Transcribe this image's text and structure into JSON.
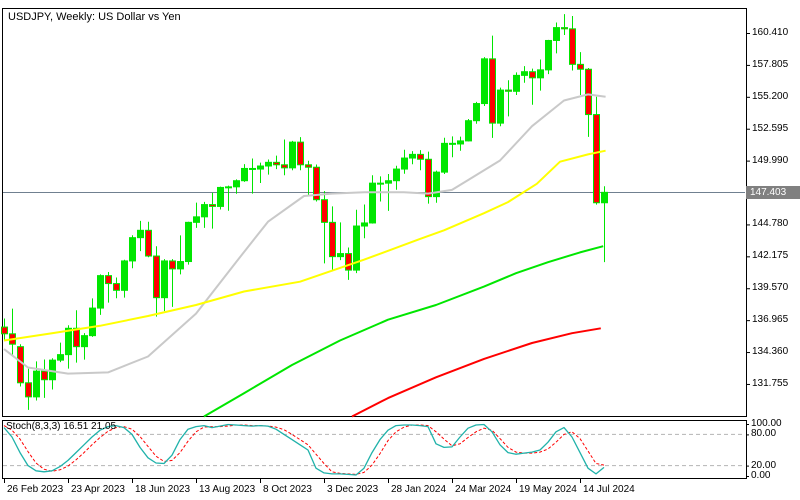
{
  "window": {
    "title": "USDJPY, Weekly:  US Dollar vs Yen"
  },
  "colors": {
    "background": "#ffffff",
    "border": "#000000",
    "text": "#000000",
    "bull": "#00e600",
    "bear": "#ff0000",
    "wick": "#00e600",
    "ma_gray": "#c9c9c9",
    "ma_yellow": "#ffff00",
    "ma_green": "#00e600",
    "ma_red": "#ff0000",
    "price_line": "#708090",
    "badge_bg": "#808080",
    "badge_text": "#ffffff",
    "stoch_main": "#20b2aa",
    "stoch_signal": "#ff0000",
    "stoch_level": "#b4b4b4"
  },
  "price_axis": {
    "current": "147.403",
    "labels": [
      "160.410",
      "157.805",
      "155.200",
      "152.595",
      "149.990",
      "144.780",
      "142.175",
      "139.570",
      "136.965",
      "134.360",
      "131.755"
    ]
  },
  "time_axis": [
    {
      "label": "26 Feb 2023",
      "i": 0
    },
    {
      "label": "23 Apr 2023",
      "i": 8
    },
    {
      "label": "18 Jun 2023",
      "i": 16
    },
    {
      "label": "13 Aug 2023",
      "i": 24
    },
    {
      "label": "8 Oct 2023",
      "i": 32
    },
    {
      "label": "3 Dec 2023",
      "i": 40
    },
    {
      "label": "28 Jan 2024",
      "i": 48
    },
    {
      "label": "24 Mar 2024",
      "i": 56
    },
    {
      "label": "19 May 2024",
      "i": 64
    },
    {
      "label": "14 Jul 2024",
      "i": 72
    }
  ],
  "stoch_axis": {
    "label": "Stoch(8,3,3) 16.51 21.05",
    "levels": [
      {
        "label": "100.00",
        "value": 100
      },
      {
        "label": "80.00",
        "value": 80
      },
      {
        "label": "20.00",
        "value": 20
      },
      {
        "label": "0.00",
        "value": 0
      }
    ],
    "dashed_levels": [
      80,
      20
    ]
  },
  "chart_data": {
    "type": "candlestick",
    "symbol": "USDJPY",
    "timeframe": "Weekly",
    "current_price": 147.403,
    "visible_range": {
      "high": 161.95,
      "low": 129.0
    },
    "candles": [
      [
        136.4,
        137.1,
        135.25,
        135.85
      ],
      [
        135.85,
        137.91,
        134.1,
        135.0
      ],
      [
        134.8,
        135.0,
        131.55,
        131.85
      ],
      [
        131.85,
        133.0,
        129.64,
        130.7
      ],
      [
        130.7,
        133.6,
        130.4,
        132.8
      ],
      [
        132.8,
        133.75,
        130.62,
        132.1
      ],
      [
        132.1,
        133.85,
        131.3,
        133.7
      ],
      [
        133.7,
        135.13,
        133.54,
        134.15
      ],
      [
        134.15,
        136.55,
        133.01,
        136.3
      ],
      [
        136.3,
        137.77,
        133.5,
        134.8
      ],
      [
        134.8,
        135.9,
        133.74,
        135.7
      ],
      [
        135.7,
        138.74,
        135.6,
        137.95
      ],
      [
        137.95,
        140.7,
        137.4,
        140.6
      ],
      [
        140.6,
        140.9,
        138.4,
        139.95
      ],
      [
        139.95,
        140.45,
        138.75,
        139.4
      ],
      [
        139.4,
        141.9,
        138.8,
        141.8
      ],
      [
        141.8,
        143.9,
        141.2,
        143.7
      ],
      [
        143.7,
        145.07,
        142.6,
        144.3
      ],
      [
        144.3,
        145.0,
        142.1,
        142.2
      ],
      [
        142.2,
        143.0,
        137.25,
        138.8
      ],
      [
        138.8,
        141.95,
        137.7,
        141.8
      ],
      [
        141.8,
        141.95,
        138.05,
        141.15
      ],
      [
        141.15,
        143.89,
        140.7,
        141.75
      ],
      [
        141.75,
        145.0,
        141.5,
        144.95
      ],
      [
        144.95,
        146.56,
        144.5,
        145.4
      ],
      [
        145.4,
        146.62,
        144.5,
        146.4
      ],
      [
        146.4,
        147.37,
        144.44,
        146.25
      ],
      [
        146.25,
        147.87,
        146.0,
        147.8
      ],
      [
        147.8,
        147.95,
        145.9,
        147.85
      ],
      [
        147.85,
        148.46,
        147.28,
        148.35
      ],
      [
        148.35,
        149.7,
        148.25,
        149.35
      ],
      [
        149.35,
        150.16,
        147.3,
        149.3
      ],
      [
        149.3,
        149.83,
        148.16,
        149.55
      ],
      [
        149.55,
        150.08,
        148.85,
        149.85
      ],
      [
        149.85,
        150.4,
        149.3,
        149.65
      ],
      [
        149.65,
        151.71,
        148.8,
        149.4
      ],
      [
        149.4,
        151.6,
        149.2,
        151.5
      ],
      [
        151.5,
        151.91,
        149.2,
        149.65
      ],
      [
        149.65,
        149.98,
        147.15,
        149.45
      ],
      [
        149.45,
        149.67,
        146.65,
        146.8
      ],
      [
        146.8,
        147.5,
        141.6,
        144.95
      ],
      [
        144.95,
        146.25,
        140.95,
        142.15
      ],
      [
        142.15,
        144.95,
        141.87,
        142.4
      ],
      [
        142.4,
        142.9,
        140.25,
        141.05
      ],
      [
        141.05,
        145.98,
        140.8,
        144.65
      ],
      [
        144.65,
        146.41,
        143.65,
        144.9
      ],
      [
        144.9,
        148.8,
        144.85,
        148.15
      ],
      [
        148.15,
        148.7,
        146.65,
        148.15
      ],
      [
        148.15,
        148.9,
        145.89,
        148.35
      ],
      [
        148.35,
        149.57,
        147.61,
        149.3
      ],
      [
        149.3,
        150.88,
        148.92,
        150.2
      ],
      [
        150.2,
        150.77,
        149.69,
        150.5
      ],
      [
        150.5,
        150.85,
        149.2,
        150.1
      ],
      [
        150.1,
        150.72,
        146.48,
        147.05
      ],
      [
        147.05,
        149.17,
        146.55,
        149.05
      ],
      [
        149.05,
        151.86,
        148.9,
        151.4
      ],
      [
        151.4,
        151.97,
        150.26,
        151.35
      ],
      [
        151.35,
        151.95,
        150.8,
        151.6
      ],
      [
        151.6,
        153.39,
        151.55,
        153.25
      ],
      [
        153.25,
        154.79,
        153.0,
        154.65
      ],
      [
        154.65,
        158.44,
        154.45,
        158.3
      ],
      [
        158.3,
        160.2,
        151.85,
        153.05
      ],
      [
        153.05,
        155.95,
        152.8,
        155.75
      ],
      [
        155.75,
        156.55,
        153.6,
        155.65
      ],
      [
        155.65,
        157.2,
        155.35,
        156.95
      ],
      [
        156.95,
        157.71,
        156.35,
        157.25
      ],
      [
        157.25,
        157.5,
        154.55,
        156.75
      ],
      [
        156.75,
        158.25,
        155.7,
        157.4
      ],
      [
        157.4,
        159.85,
        157.05,
        159.8
      ],
      [
        159.8,
        161.27,
        158.75,
        160.85
      ],
      [
        160.85,
        161.95,
        160.25,
        160.75
      ],
      [
        160.75,
        161.8,
        157.35,
        157.85
      ],
      [
        157.85,
        158.85,
        155.35,
        157.45
      ],
      [
        157.45,
        157.55,
        151.93,
        153.75
      ],
      [
        153.75,
        155.2,
        146.4,
        146.55
      ],
      [
        146.55,
        147.9,
        141.7,
        147.4
      ]
    ],
    "ma_lines": [
      {
        "name": "ma-gray",
        "color": "#c9c9c9",
        "points": [
          [
            0,
            134.6
          ],
          [
            3,
            133.1
          ],
          [
            8,
            132.6
          ],
          [
            13,
            132.7
          ],
          [
            18,
            134.0
          ],
          [
            24,
            137.5
          ],
          [
            29,
            141.7
          ],
          [
            33,
            145.0
          ],
          [
            37.5,
            147.1
          ],
          [
            41,
            147.3
          ],
          [
            45,
            147.4
          ],
          [
            50,
            147.4
          ],
          [
            53,
            147.3
          ],
          [
            56,
            147.6
          ],
          [
            58,
            148.4
          ],
          [
            62,
            150.0
          ],
          [
            66,
            152.8
          ],
          [
            70,
            154.9
          ],
          [
            73,
            155.4
          ],
          [
            75.2,
            155.2
          ]
        ]
      },
      {
        "name": "ma-yellow",
        "color": "#ffff00",
        "points": [
          [
            0,
            135.3
          ],
          [
            6,
            135.9
          ],
          [
            12,
            136.5
          ],
          [
            18,
            137.3
          ],
          [
            24,
            138.2
          ],
          [
            30,
            139.3
          ],
          [
            37,
            140.1
          ],
          [
            45,
            141.9
          ],
          [
            52,
            143.6
          ],
          [
            55,
            144.3
          ],
          [
            60,
            145.7
          ],
          [
            63,
            146.6
          ],
          [
            66.6,
            148.1
          ],
          [
            69.5,
            149.9
          ],
          [
            73,
            150.5
          ],
          [
            75.2,
            150.8
          ]
        ]
      },
      {
        "name": "ma-green",
        "color": "#00e600",
        "points": [
          [
            25,
            129.1
          ],
          [
            30,
            131.0
          ],
          [
            36,
            133.3
          ],
          [
            42,
            135.3
          ],
          [
            48,
            137.0
          ],
          [
            54,
            138.2
          ],
          [
            60,
            139.7
          ],
          [
            64,
            140.8
          ],
          [
            68,
            141.7
          ],
          [
            72,
            142.5
          ],
          [
            74.9,
            143.0
          ]
        ]
      },
      {
        "name": "ma-red",
        "color": "#ff0000",
        "points": [
          [
            43.5,
            129.1
          ],
          [
            48,
            130.6
          ],
          [
            54,
            132.3
          ],
          [
            60,
            133.8
          ],
          [
            66,
            135.1
          ],
          [
            71,
            135.9
          ],
          [
            74.6,
            136.3
          ]
        ]
      }
    ],
    "stochastic": {
      "parameters": "8,3,3",
      "main_current": 16.51,
      "signal_current": 21.05,
      "main": [
        93,
        75,
        45,
        20,
        10,
        8,
        10,
        18,
        30,
        45,
        60,
        75,
        88,
        95,
        97,
        93,
        80,
        55,
        35,
        25,
        24,
        40,
        70,
        90,
        95,
        97,
        93,
        96,
        99,
        98,
        97,
        96,
        97,
        96,
        90,
        80,
        70,
        60,
        50,
        15,
        6,
        4,
        4,
        3,
        2,
        15,
        45,
        70,
        88,
        97,
        98,
        98,
        97,
        95,
        62,
        55,
        56,
        75,
        92,
        98,
        99,
        85,
        60,
        45,
        42,
        44,
        46,
        50,
        65,
        85,
        93,
        75,
        45,
        15,
        4,
        16.51
      ],
      "signal": [
        97,
        88,
        71,
        47,
        25,
        13,
        9,
        12,
        19,
        31,
        45,
        60,
        74,
        86,
        93,
        95,
        90,
        76,
        57,
        38,
        28,
        30,
        45,
        67,
        85,
        94,
        95,
        95,
        96,
        98,
        98,
        97,
        97,
        96,
        94,
        89,
        80,
        70,
        60,
        42,
        24,
        8,
        5,
        4,
        3,
        7,
        21,
        43,
        68,
        85,
        94,
        98,
        98,
        97,
        85,
        71,
        58,
        62,
        74,
        85,
        92,
        88,
        72,
        55,
        46,
        44,
        44,
        46,
        52,
        65,
        80,
        85,
        72,
        48,
        24,
        21.05
      ]
    }
  }
}
